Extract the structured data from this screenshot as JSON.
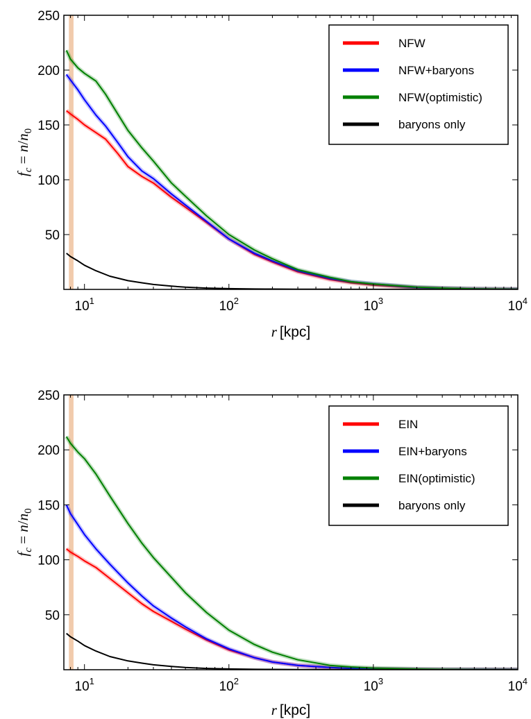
{
  "chart_data": [
    {
      "type": "line",
      "xscale": "log",
      "xlim": [
        7.2,
        10000
      ],
      "ylim": [
        0,
        250
      ],
      "xlabel": "r [kpc]",
      "ylabel": "f_c = n/n_0",
      "yticks": [
        "50",
        "100",
        "150",
        "200",
        "250"
      ],
      "xticks": [
        {
          "base": "10",
          "exp": "1"
        },
        {
          "base": "10",
          "exp": "2"
        },
        {
          "base": "10",
          "exp": "3"
        },
        {
          "base": "10",
          "exp": "4"
        }
      ],
      "shaded_band": {
        "from": 7.8,
        "to": 8.4,
        "color": "#f0c8a8"
      },
      "legend_position": "top-right",
      "series": [
        {
          "name": "NFW",
          "color": "#ff0000",
          "x": [
            7.5,
            8,
            9,
            10,
            12,
            14,
            17,
            20,
            25,
            30,
            40,
            50,
            70,
            100,
            150,
            200,
            300,
            500,
            700,
            1000,
            2000,
            3000,
            5000,
            10000
          ],
          "y": [
            163,
            160,
            155,
            150,
            143,
            137,
            124,
            112,
            103,
            97,
            84,
            75,
            61,
            46,
            32,
            25,
            16,
            9,
            6,
            4,
            1.5,
            1,
            0.5,
            0.2
          ]
        },
        {
          "name": "NFW+baryons",
          "color": "#0000ff",
          "x": [
            7.5,
            8,
            9,
            10,
            12,
            14,
            17,
            20,
            25,
            30,
            40,
            50,
            70,
            100,
            150,
            200,
            300,
            500,
            700,
            1000,
            2000,
            3000,
            5000,
            10000
          ],
          "y": [
            196,
            191,
            182,
            173,
            159,
            149,
            134,
            121,
            108,
            101,
            87,
            77,
            62,
            46,
            33,
            26,
            17,
            10,
            7,
            5,
            1.8,
            1.1,
            0.5,
            0.2
          ]
        },
        {
          "name": "NFW(optimistic)",
          "color": "#008000",
          "x": [
            7.5,
            8,
            9,
            10,
            12,
            14,
            17,
            20,
            25,
            30,
            40,
            50,
            70,
            100,
            150,
            200,
            300,
            500,
            700,
            1000,
            2000,
            3000,
            5000,
            10000
          ],
          "y": [
            218,
            210,
            202,
            197,
            190,
            178,
            160,
            145,
            129,
            117,
            97,
            85,
            67,
            50,
            36,
            28,
            18,
            11,
            7,
            5,
            2,
            1.2,
            0.5,
            0.2
          ]
        },
        {
          "name": "baryons only",
          "color": "#000000",
          "x": [
            7.5,
            8,
            9,
            10,
            12,
            15,
            20,
            25,
            30,
            40,
            50,
            70,
            100,
            150,
            200,
            300,
            500,
            1000,
            10000
          ],
          "y": [
            33,
            30,
            26,
            22,
            17,
            12,
            8,
            6,
            4.5,
            3,
            2,
            1.2,
            0.7,
            0.4,
            0.3,
            0.2,
            0.1,
            0.05,
            0.02
          ]
        }
      ]
    },
    {
      "type": "line",
      "xscale": "log",
      "xlim": [
        7.2,
        10000
      ],
      "ylim": [
        0,
        250
      ],
      "xlabel": "r [kpc]",
      "ylabel": "f_c = n/n_0",
      "yticks": [
        "50",
        "100",
        "150",
        "200",
        "250"
      ],
      "xticks": [
        {
          "base": "10",
          "exp": "1"
        },
        {
          "base": "10",
          "exp": "2"
        },
        {
          "base": "10",
          "exp": "3"
        },
        {
          "base": "10",
          "exp": "4"
        }
      ],
      "shaded_band": {
        "from": 7.8,
        "to": 8.4,
        "color": "#f0c8a8"
      },
      "legend_position": "top-right",
      "series": [
        {
          "name": "EIN",
          "color": "#ff0000",
          "x": [
            7.5,
            8,
            9,
            10,
            12,
            15,
            20,
            25,
            30,
            40,
            50,
            70,
            100,
            150,
            200,
            300,
            500,
            700,
            1000,
            2000,
            3000,
            5000,
            10000
          ],
          "y": [
            110,
            107,
            103,
            99,
            93,
            83,
            70,
            60,
            53,
            44,
            37,
            27,
            18,
            11,
            7,
            4,
            2,
            1.2,
            0.7,
            0.3,
            0.2,
            0.1,
            0.05
          ]
        },
        {
          "name": "EIN+baryons",
          "color": "#0000ff",
          "x": [
            7.5,
            8,
            9,
            10,
            12,
            15,
            20,
            25,
            30,
            40,
            50,
            70,
            100,
            150,
            200,
            300,
            500,
            700,
            1000,
            2000,
            3000,
            5000,
            10000
          ],
          "y": [
            150,
            142,
            132,
            123,
            110,
            96,
            79,
            67,
            58,
            47,
            39,
            28,
            19,
            11,
            7,
            4,
            2,
            1.2,
            0.7,
            0.3,
            0.2,
            0.1,
            0.05
          ]
        },
        {
          "name": "EIN(optimistic)",
          "color": "#008000",
          "x": [
            7.5,
            8,
            9,
            10,
            12,
            15,
            20,
            25,
            30,
            40,
            50,
            70,
            100,
            150,
            200,
            300,
            500,
            700,
            1000,
            2000,
            3000,
            5000,
            10000
          ],
          "y": [
            212,
            206,
            198,
            192,
            178,
            158,
            133,
            115,
            102,
            84,
            70,
            52,
            36,
            23,
            16,
            9,
            4,
            2.5,
            1.5,
            0.6,
            0.3,
            0.15,
            0.05
          ]
        },
        {
          "name": "baryons only",
          "color": "#000000",
          "x": [
            7.5,
            8,
            9,
            10,
            12,
            15,
            20,
            25,
            30,
            40,
            50,
            70,
            100,
            150,
            200,
            300,
            500,
            1000,
            10000
          ],
          "y": [
            33,
            30,
            26,
            22,
            17,
            12,
            8,
            6,
            4.5,
            3,
            2,
            1.2,
            0.7,
            0.4,
            0.3,
            0.2,
            0.1,
            0.05,
            0.02
          ]
        }
      ]
    }
  ]
}
